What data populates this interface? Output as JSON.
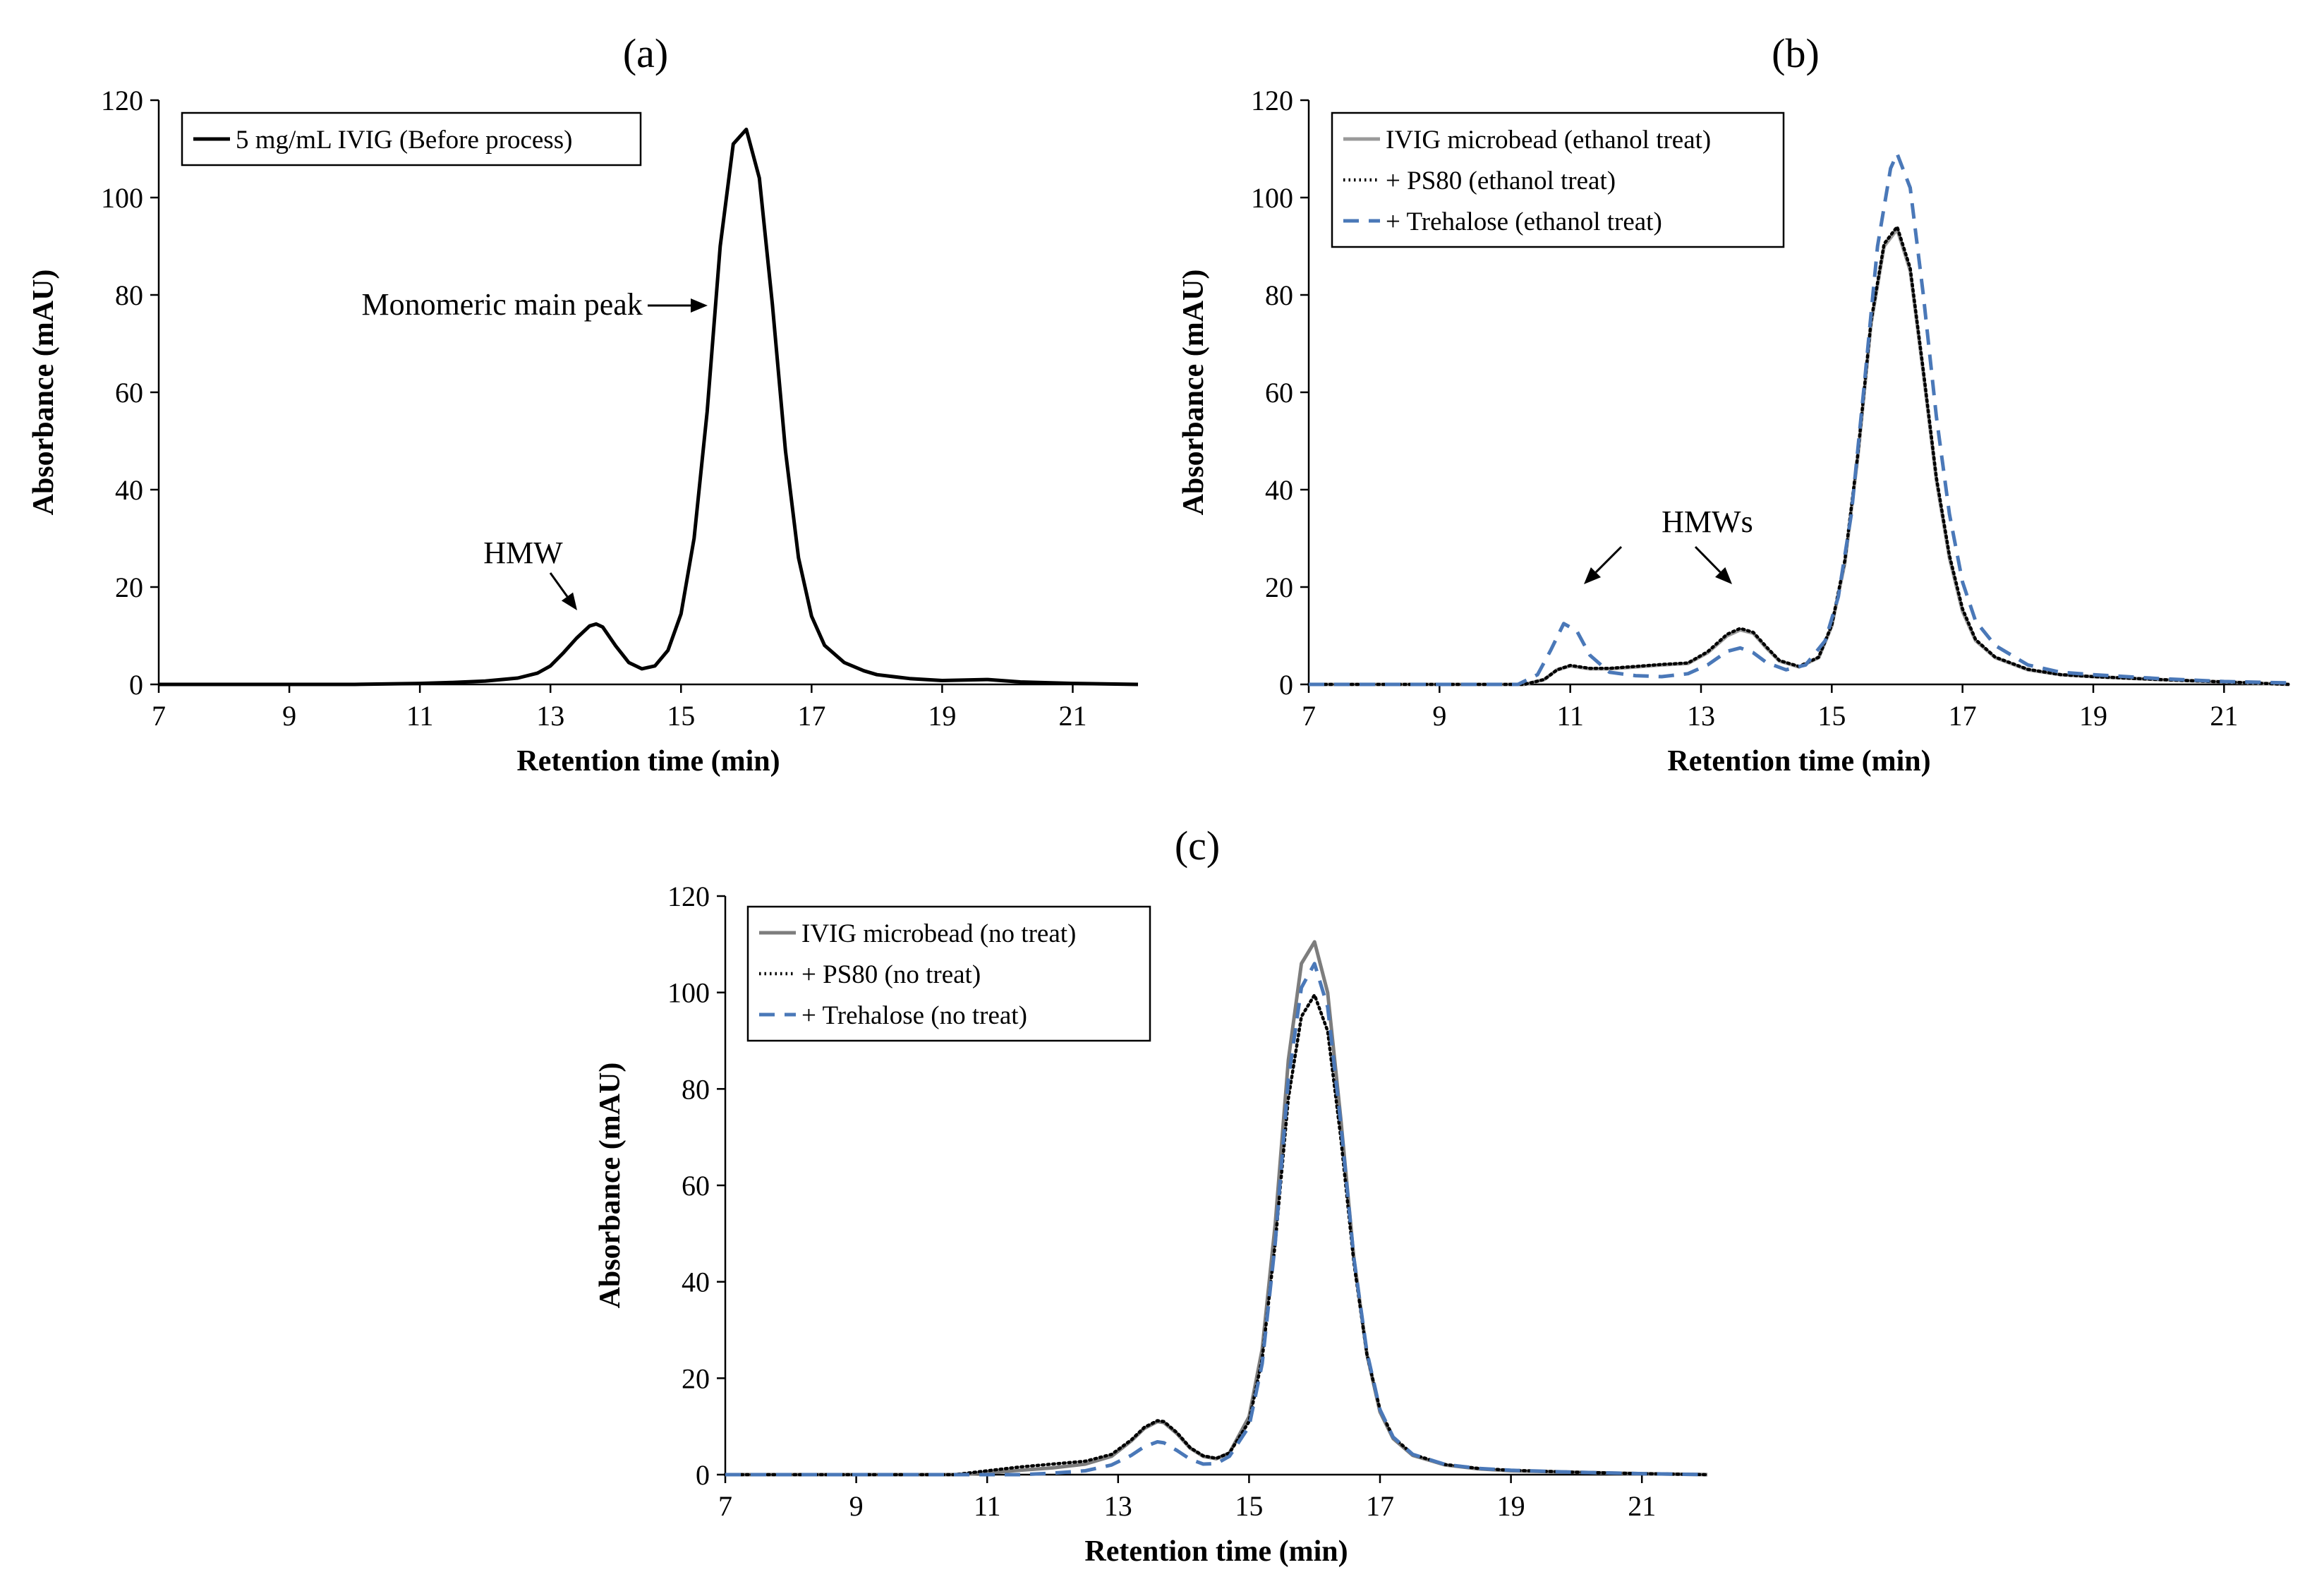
{
  "chart_data": [
    {
      "id": "a",
      "type": "line",
      "panel_label": "(a)",
      "xlabel": "Retention time (min)",
      "ylabel": "Absorbance (mAU)",
      "xlim": [
        7,
        22
      ],
      "ylim": [
        0,
        120
      ],
      "xticks": [
        7,
        9,
        11,
        13,
        15,
        17,
        19,
        21
      ],
      "yticks": [
        0,
        20,
        40,
        60,
        80,
        100,
        120
      ],
      "legend_position": "top-left",
      "series": [
        {
          "name": "5 mg/mL IVIG (Before process)",
          "color": "#000000",
          "style": "solid",
          "x": [
            7,
            10,
            11,
            11.5,
            12,
            12.5,
            12.8,
            13.0,
            13.2,
            13.4,
            13.6,
            13.7,
            13.8,
            14.0,
            14.2,
            14.4,
            14.6,
            14.8,
            15.0,
            15.2,
            15.4,
            15.6,
            15.8,
            16.0,
            16.2,
            16.4,
            16.6,
            16.8,
            17.0,
            17.2,
            17.5,
            17.8,
            18.0,
            18.5,
            19.0,
            19.7,
            20.2,
            21,
            22
          ],
          "y": [
            0,
            0,
            0.2,
            0.4,
            0.7,
            1.3,
            2.3,
            3.8,
            6.5,
            9.5,
            12.0,
            12.4,
            11.8,
            7.9,
            4.5,
            3.2,
            3.8,
            7.0,
            14.5,
            30.0,
            56.0,
            90.0,
            111.0,
            114.0,
            104.0,
            78.0,
            48.0,
            26.0,
            14.0,
            8.0,
            4.5,
            2.8,
            2.0,
            1.2,
            0.8,
            1.0,
            0.5,
            0.2,
            0
          ]
        }
      ],
      "annotations": [
        {
          "text": "Monomeric main peak",
          "target_x": 15.6,
          "target_y": 78
        },
        {
          "text": "HMW",
          "target_x": 13.5,
          "target_y": 14.5
        }
      ]
    },
    {
      "id": "b",
      "type": "line",
      "panel_label": "(b)",
      "xlabel": "Retention time (min)",
      "ylabel": "Absorbance (mAU)",
      "xlim": [
        7,
        22
      ],
      "ylim": [
        0,
        120
      ],
      "xticks": [
        7,
        9,
        11,
        13,
        15,
        17,
        19,
        21
      ],
      "yticks": [
        0,
        20,
        40,
        60,
        80,
        100,
        120
      ],
      "legend_position": "top-left",
      "series": [
        {
          "name": "IVIG microbead (ethanol treat)",
          "color": "#9a9a9a",
          "style": "solid",
          "x": [
            7,
            10.3,
            10.6,
            10.8,
            11.0,
            11.3,
            11.6,
            12.0,
            12.4,
            12.8,
            13.1,
            13.4,
            13.6,
            13.8,
            14.0,
            14.2,
            14.5,
            14.8,
            15.0,
            15.2,
            15.4,
            15.6,
            15.8,
            16.0,
            16.2,
            16.4,
            16.6,
            16.8,
            17.0,
            17.2,
            17.5,
            18.0,
            18.5,
            19.0,
            20,
            21,
            22
          ],
          "y": [
            0,
            0,
            1.0,
            3.0,
            3.8,
            3.2,
            3.2,
            3.6,
            4.0,
            4.3,
            6.5,
            10.0,
            11.2,
            10.5,
            7.5,
            4.8,
            3.6,
            5.5,
            12.0,
            25.0,
            47.0,
            74.0,
            90.0,
            93.5,
            85.0,
            64.0,
            42.0,
            26.0,
            15.0,
            9.0,
            5.5,
            3.0,
            2.0,
            1.6,
            1.0,
            0.5,
            0
          ]
        },
        {
          "name": "+ PS80 (ethanol treat)",
          "color": "#000000",
          "style": "dotted",
          "x": [
            7,
            10.3,
            10.6,
            10.8,
            11.0,
            11.3,
            11.6,
            12.0,
            12.4,
            12.8,
            13.1,
            13.4,
            13.6,
            13.8,
            14.0,
            14.2,
            14.5,
            14.8,
            15.0,
            15.2,
            15.4,
            15.6,
            15.8,
            16.0,
            16.2,
            16.4,
            16.6,
            16.8,
            17.0,
            17.2,
            17.5,
            18.0,
            18.5,
            19.0,
            20,
            21,
            22
          ],
          "y": [
            0,
            0,
            1.0,
            3.0,
            3.9,
            3.3,
            3.3,
            3.7,
            4.1,
            4.4,
            6.7,
            10.3,
            11.5,
            10.7,
            7.7,
            4.9,
            3.7,
            5.6,
            12.2,
            25.5,
            47.5,
            74.5,
            90.5,
            94.0,
            85.5,
            64.5,
            42.5,
            26.5,
            15.5,
            9.2,
            5.6,
            3.1,
            2.0,
            1.6,
            1.0,
            0.5,
            0
          ]
        },
        {
          "name": "+ Trehalose (ethanol treat)",
          "color": "#4a78b8",
          "style": "dashed",
          "x": [
            7,
            10.2,
            10.5,
            10.7,
            10.9,
            11.1,
            11.3,
            11.6,
            12.0,
            12.4,
            12.8,
            13.1,
            13.4,
            13.6,
            13.8,
            14.0,
            14.3,
            14.6,
            14.9,
            15.1,
            15.3,
            15.5,
            15.7,
            15.9,
            16.0,
            16.2,
            16.4,
            16.6,
            16.8,
            17.0,
            17.2,
            17.5,
            18.0,
            18.5,
            19.0,
            20,
            21,
            22
          ],
          "y": [
            0,
            0,
            2.0,
            7.0,
            12.5,
            11.0,
            6.0,
            2.5,
            1.8,
            1.6,
            2.2,
            4.0,
            6.8,
            7.5,
            6.5,
            4.5,
            3.0,
            4.0,
            9.0,
            18.0,
            35.0,
            62.0,
            90.0,
            106.0,
            109.0,
            102.0,
            80.0,
            55.0,
            35.0,
            21.0,
            13.0,
            8.0,
            4.0,
            2.5,
            2.0,
            1.2,
            0.6,
            0.3
          ]
        }
      ],
      "annotations": [
        {
          "text": "HMWs",
          "target_x": 11.1,
          "target_y": 20
        }
      ]
    },
    {
      "id": "c",
      "type": "line",
      "panel_label": "(c)",
      "xlabel": "Retention time (min)",
      "ylabel": "Absorbance (mAU)",
      "xlim": [
        7,
        22
      ],
      "ylim": [
        0,
        120
      ],
      "xticks": [
        7,
        9,
        11,
        13,
        15,
        17,
        19,
        21
      ],
      "yticks": [
        0,
        20,
        40,
        60,
        80,
        100,
        120
      ],
      "legend_position": "top-left",
      "series": [
        {
          "name": "IVIG microbead (no treat)",
          "color": "#7d7d7d",
          "style": "solid",
          "x": [
            7,
            10.5,
            11.0,
            11.5,
            12.0,
            12.5,
            12.9,
            13.2,
            13.4,
            13.6,
            13.7,
            13.9,
            14.1,
            14.3,
            14.5,
            14.7,
            15.0,
            15.2,
            15.4,
            15.6,
            15.8,
            16.0,
            16.2,
            16.4,
            16.6,
            16.8,
            17.0,
            17.2,
            17.5,
            18.0,
            18.5,
            19.0,
            20,
            21,
            22
          ],
          "y": [
            0,
            0,
            0.4,
            0.9,
            1.4,
            2.2,
            3.8,
            7.0,
            9.6,
            11.0,
            10.8,
            8.5,
            5.5,
            3.8,
            3.3,
            4.5,
            12.0,
            26.0,
            52.0,
            86.0,
            106.0,
            110.5,
            100.0,
            74.0,
            45.0,
            25.0,
            13.0,
            7.5,
            4.0,
            2.0,
            1.2,
            0.8,
            0.5,
            0.2,
            0
          ]
        },
        {
          "name": "+ PS80 (no treat)",
          "color": "#000000",
          "style": "dotted",
          "x": [
            7,
            10.5,
            11.0,
            11.5,
            12.0,
            12.5,
            12.9,
            13.2,
            13.4,
            13.6,
            13.7,
            13.9,
            14.1,
            14.3,
            14.5,
            14.7,
            15.0,
            15.2,
            15.4,
            15.6,
            15.8,
            16.0,
            16.2,
            16.4,
            16.6,
            16.8,
            17.0,
            17.2,
            17.5,
            18.0,
            18.5,
            19.0,
            20,
            21,
            22
          ],
          "y": [
            0,
            0,
            0.8,
            1.6,
            2.2,
            2.8,
            4.2,
            7.2,
            9.8,
            11.2,
            11.0,
            8.7,
            5.6,
            3.9,
            3.4,
            4.5,
            11.0,
            24.0,
            48.0,
            78.0,
            95.0,
            99.5,
            92.0,
            70.0,
            44.0,
            25.0,
            13.5,
            7.8,
            4.2,
            2.1,
            1.3,
            0.9,
            0.5,
            0.2,
            0
          ]
        },
        {
          "name": "+ Trehalose (no treat)",
          "color": "#4a78b8",
          "style": "dashed",
          "x": [
            7,
            11.5,
            12.0,
            12.5,
            12.9,
            13.2,
            13.4,
            13.6,
            13.7,
            13.9,
            14.1,
            14.3,
            14.5,
            14.7,
            15.0,
            15.2,
            15.4,
            15.6,
            15.8,
            16.0,
            16.2,
            16.4,
            16.6,
            16.8,
            17.0,
            17.2,
            17.5,
            18.0,
            18.5,
            19.0,
            20,
            21,
            22
          ],
          "y": [
            0,
            0,
            0.3,
            0.8,
            2.0,
            4.0,
            5.8,
            6.8,
            6.6,
            5.0,
            3.2,
            2.2,
            2.3,
            3.8,
            10.0,
            23.0,
            48.0,
            82.0,
            101.0,
            106.0,
            97.0,
            73.0,
            45.0,
            25.5,
            13.5,
            7.8,
            4.2,
            2.1,
            1.3,
            0.9,
            0.5,
            0.2,
            0
          ]
        }
      ],
      "annotations": []
    }
  ]
}
